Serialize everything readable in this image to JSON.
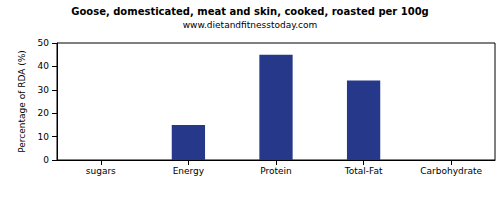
{
  "chart_data": {
    "type": "bar",
    "title": "Goose, domesticated, meat and skin, cooked, roasted per 100g",
    "subtitle": "www.dietandfitnesstoday.com",
    "ylabel": "Percentage of RDA (%)",
    "categories": [
      "sugars",
      "Energy",
      "Protein",
      "Total-Fat",
      "Carbohydrate"
    ],
    "values": [
      0,
      15,
      45,
      34,
      0
    ],
    "color": "#26388a",
    "ylim": [
      0,
      50
    ],
    "yticks": [
      0,
      10,
      20,
      30,
      40,
      50
    ],
    "grid": false
  }
}
